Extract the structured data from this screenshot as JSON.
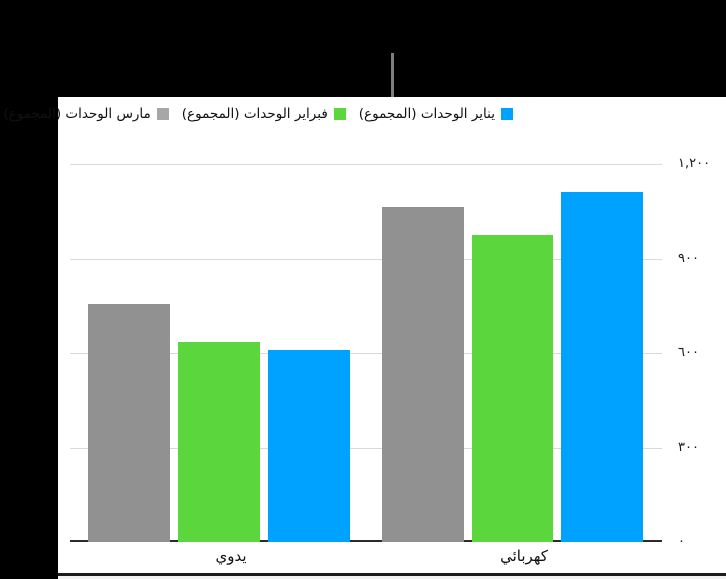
{
  "canvas": {
    "background_color": "#000000",
    "panel_color": "#ffffff",
    "pointer_line_color": "#7e7e7e"
  },
  "chart_data": {
    "type": "bar",
    "direction": "rtl",
    "title": "",
    "categories": [
      "يدوي",
      "كهربائي"
    ],
    "series": [
      {
        "name": "يناير الوحدات (المجموع)",
        "color": "#00a2ff",
        "legend_color": "#00a2ff",
        "values": [
          610,
          1110
        ]
      },
      {
        "name": "فبراير الوحدات (المجموع)",
        "color": "#5bd63c",
        "legend_color": "#5bd63c",
        "values": [
          635,
          975
        ]
      },
      {
        "name": "مارس الوحدات (المجموع)",
        "color": "#919191",
        "legend_color": "#a7a7a7",
        "values": [
          755,
          1065
        ]
      }
    ],
    "ylim": [
      0,
      1200
    ],
    "yticks": [
      {
        "value": 0,
        "label": "٠"
      },
      {
        "value": 300,
        "label": "٣٠٠"
      },
      {
        "value": 600,
        "label": "٦٠٠"
      },
      {
        "value": 900,
        "label": "٩٠٠"
      },
      {
        "value": 1200,
        "label": "١,٢٠٠"
      }
    ],
    "grid": true,
    "legend_position": "top-right",
    "gridline_color": "#d9d9d9",
    "axis_line_color": "#2b2b2b",
    "label_color": "#1a1a1a"
  }
}
